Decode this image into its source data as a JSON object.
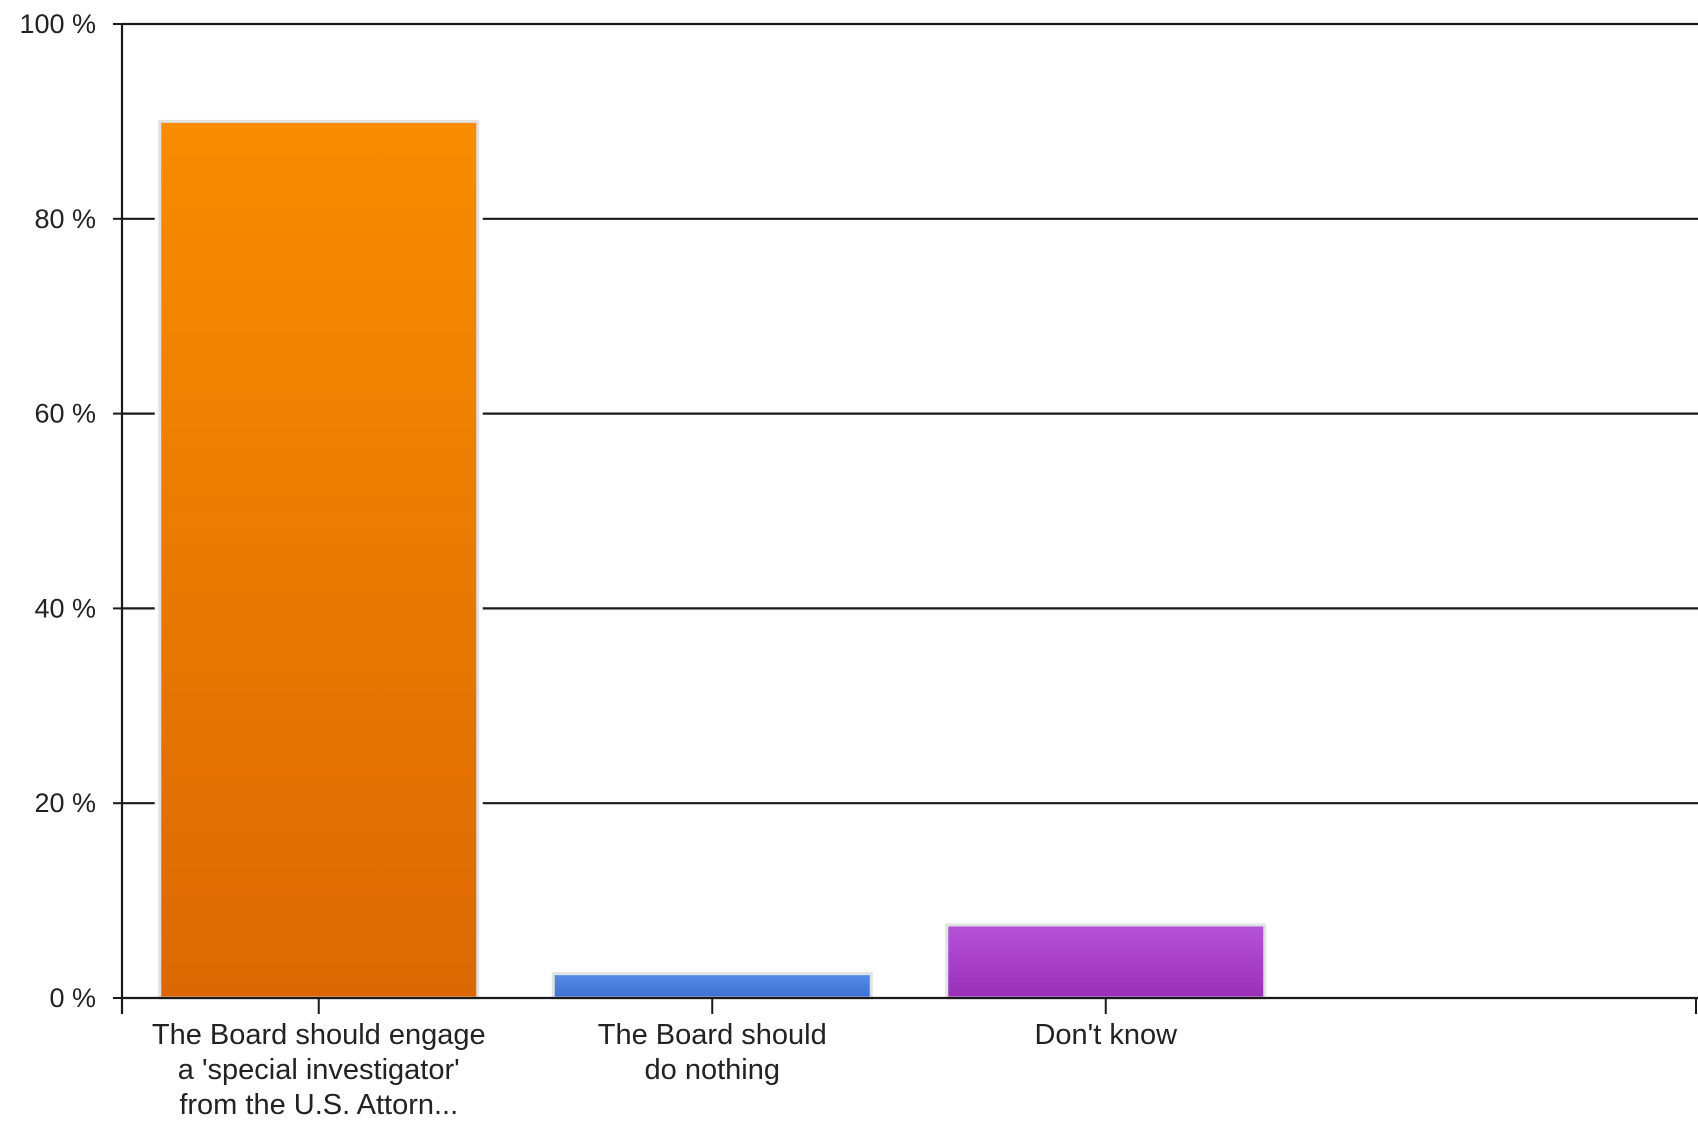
{
  "chart_data": {
    "type": "bar",
    "categories": [
      [
        "The Board should engage",
        "a 'special investigator'",
        "from the U.S. Attorn..."
      ],
      [
        "The Board should",
        "do nothing"
      ],
      [
        "Don't know"
      ]
    ],
    "values": [
      90,
      2.5,
      7.5
    ],
    "colors": [
      [
        "#f98c00",
        "#dc6803"
      ],
      [
        "#5b8ee8",
        "#3c6fd2"
      ],
      [
        "#b653d9",
        "#9a2fb8"
      ]
    ],
    "ylim": [
      0,
      100
    ],
    "yticks": [
      0,
      20,
      40,
      60,
      80,
      100
    ],
    "ytick_labels": [
      "0 %",
      "20 %",
      "40 %",
      "60 %",
      "80 %",
      "100 %"
    ],
    "grid": true,
    "legend": "none"
  }
}
